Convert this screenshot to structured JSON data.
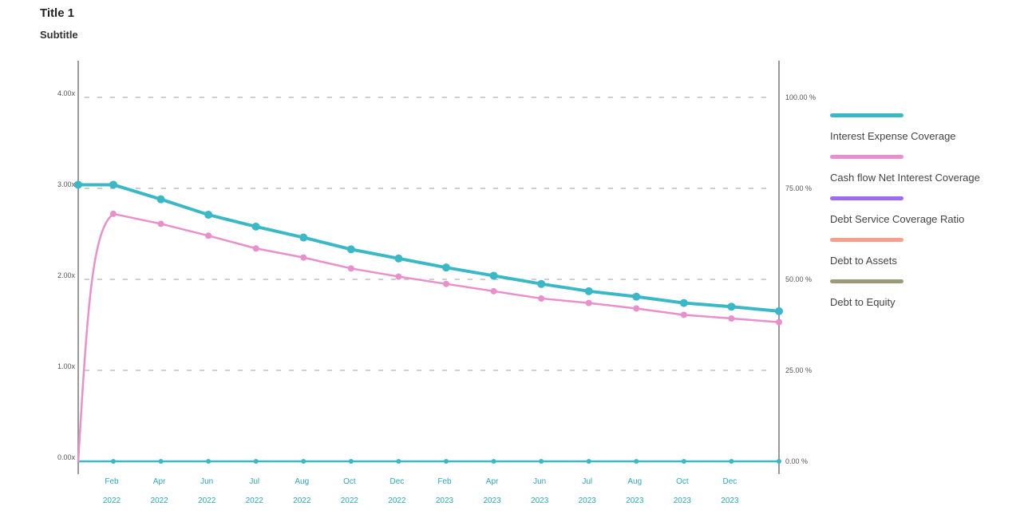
{
  "title": "Title 1",
  "subtitle": "Subtitle",
  "chart_data": {
    "type": "line",
    "left_axis": {
      "ticks": [
        {
          "value": 0,
          "line1": "0.00x",
          "line2": ""
        },
        {
          "value": 1,
          "line1": "1.00x",
          "line2": ""
        },
        {
          "value": 2,
          "line1": "2.00x",
          "line2": ""
        },
        {
          "value": 3,
          "line1": "3.00x",
          "line2": ""
        },
        {
          "value": 4,
          "line1": "4.00x",
          "line2": ""
        }
      ],
      "ylim": [
        0,
        4
      ]
    },
    "right_axis": {
      "ticks": [
        "0.00 %",
        "25.00 %",
        "50.00 %",
        "75.00 %",
        "100.00 %"
      ],
      "ylim": [
        0,
        100
      ]
    },
    "x_ticks": [
      {
        "line1": "Feb",
        "line2": "2022"
      },
      {
        "line1": "Apr",
        "line2": "2022"
      },
      {
        "line1": "Jun",
        "line2": "2022"
      },
      {
        "line1": "Jul",
        "line2": "2022"
      },
      {
        "line1": "Aug",
        "line2": "2022"
      },
      {
        "line1": "Oct",
        "line2": "2022"
      },
      {
        "line1": "Dec",
        "line2": "2022"
      },
      {
        "line1": "Feb",
        "line2": "2023"
      },
      {
        "line1": "Apr",
        "line2": "2023"
      },
      {
        "line1": "Jun",
        "line2": "2023"
      },
      {
        "line1": "Jul",
        "line2": "2023"
      },
      {
        "line1": "Aug",
        "line2": "2023"
      },
      {
        "line1": "Oct",
        "line2": "2023"
      },
      {
        "line1": "Dec",
        "line2": "2023"
      }
    ],
    "series": [
      {
        "name": "Interest Expense Coverage",
        "color": "#3bb8c6",
        "width": 4,
        "axis": "left",
        "values": [
          3.04,
          3.04,
          2.88,
          2.71,
          2.58,
          2.46,
          2.33,
          2.23,
          2.13,
          2.04,
          1.95,
          1.87,
          1.81,
          1.74,
          1.7,
          1.65
        ]
      },
      {
        "name": "Cash flow Net Interest Coverage",
        "color": "#e98fcb",
        "width": 2.5,
        "axis": "left",
        "values": [
          0.0,
          2.72,
          2.61,
          2.48,
          2.34,
          2.24,
          2.12,
          2.03,
          1.95,
          1.87,
          1.79,
          1.74,
          1.68,
          1.61,
          1.57,
          1.53
        ]
      },
      {
        "name": "Debt Service Coverage Ratio",
        "color": "#9b6cf0",
        "width": 4,
        "axis": "left",
        "values": []
      },
      {
        "name": "Debt to Assets",
        "color": "#f4a08c",
        "width": 4,
        "axis": "right",
        "values": []
      },
      {
        "name": "Debt to Equity",
        "color": "#9c9a7a",
        "width": 4,
        "axis": "right",
        "values": []
      }
    ],
    "baseline_color": "#3bb8c6",
    "grid": true,
    "legend_position": "right"
  }
}
